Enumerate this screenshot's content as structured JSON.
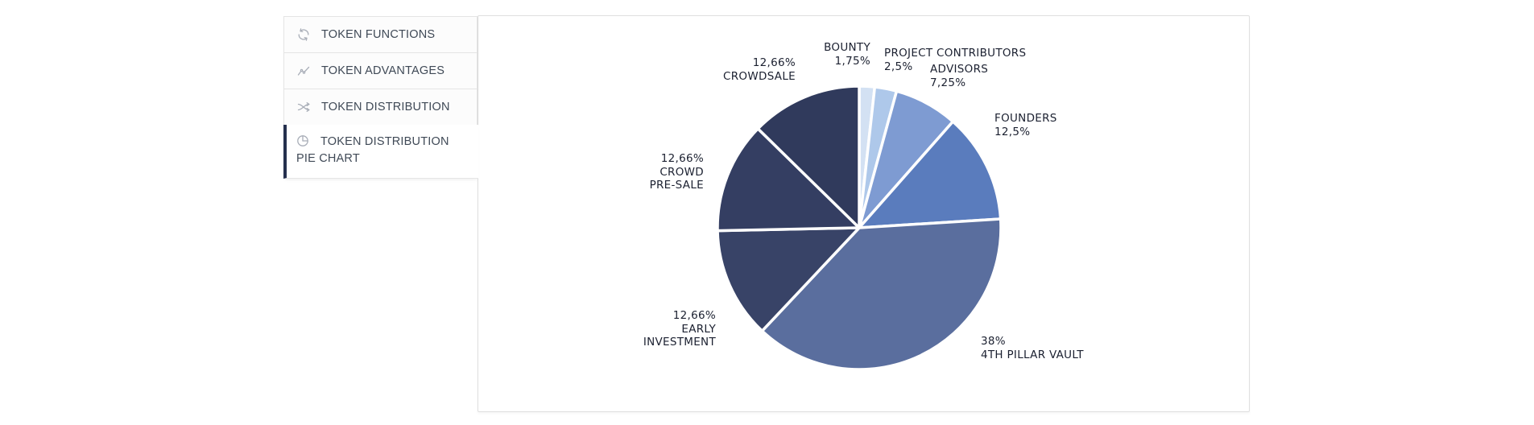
{
  "sidebar": {
    "items": [
      {
        "label": "TOKEN FUNCTIONS",
        "icon": "refresh-icon",
        "selected": false
      },
      {
        "label": "TOKEN ADVANTAGES",
        "icon": "trend-icon",
        "selected": false
      },
      {
        "label": "TOKEN DISTRIBUTION",
        "icon": "shuffle-icon",
        "selected": false
      },
      {
        "label": "TOKEN DISTRIBUTION PIE CHART",
        "icon": "pie-chart-icon",
        "selected": true
      }
    ]
  },
  "chart_data": {
    "type": "pie",
    "title": "TOKEN DISTRIBUTION PIE CHART",
    "legend_position": "around-slices",
    "slices": [
      {
        "id": "bounty",
        "label": "BOUNTY",
        "value": 1.75,
        "display": "1,75%",
        "color": "#d3e1f3"
      },
      {
        "id": "project-contributors",
        "label": "PROJECT CONTRIBUTORS",
        "value": 2.5,
        "display": "2,5%",
        "color": "#aec8ea"
      },
      {
        "id": "advisors",
        "label": "ADVISORS",
        "value": 7.25,
        "display": "7,25%",
        "color": "#7e9bd2"
      },
      {
        "id": "founders",
        "label": "FOUNDERS",
        "value": 12.5,
        "display": "12,5%",
        "color": "#5a7cbd"
      },
      {
        "id": "4th-pillar-vault",
        "label": "4TH PILLAR VAULT",
        "value": 38,
        "display": "38%",
        "color": "#5a6e9e"
      },
      {
        "id": "early-investment",
        "label": "EARLY INVESTMENT",
        "value": 12.66,
        "display": "12,66%",
        "color": "#384367"
      },
      {
        "id": "crowd-pre-sale",
        "label": "CROWD PRE-SALE",
        "value": 12.66,
        "display": "12,66%",
        "color": "#343e62"
      },
      {
        "id": "crowdsale",
        "label": "CROWDSALE",
        "value": 12.66,
        "display": "12,66%",
        "color": "#303a5c"
      }
    ],
    "start_angle_deg": 0,
    "direction": "clockwise",
    "divider_color": "#ffffff",
    "annotations": [
      {
        "name": "bounty",
        "align": "right",
        "lines": [
          "BOUNTY",
          "1,75%"
        ]
      },
      {
        "name": "project-contributors",
        "align": "left",
        "lines": [
          "PROJECT CONTRIBUTORS",
          "2,5%"
        ]
      },
      {
        "name": "advisors",
        "align": "left",
        "lines": [
          "ADVISORS",
          "7,25%"
        ]
      },
      {
        "name": "founders",
        "align": "left",
        "lines": [
          "FOUNDERS",
          "12,5%"
        ]
      },
      {
        "name": "crowdsale",
        "align": "right",
        "lines": [
          "12,66%",
          "CROWDSALE"
        ]
      },
      {
        "name": "crowd-pre-sale",
        "align": "right",
        "lines": [
          "12,66%",
          "CROWD",
          "PRE-SALE"
        ]
      },
      {
        "name": "early-investment",
        "align": "right",
        "lines": [
          "12,66%",
          "EARLY",
          "INVESTMENT"
        ]
      },
      {
        "name": "4th-pillar-vault",
        "align": "left",
        "lines": [
          "38%",
          "4TH PILLAR VAULT"
        ]
      }
    ]
  }
}
